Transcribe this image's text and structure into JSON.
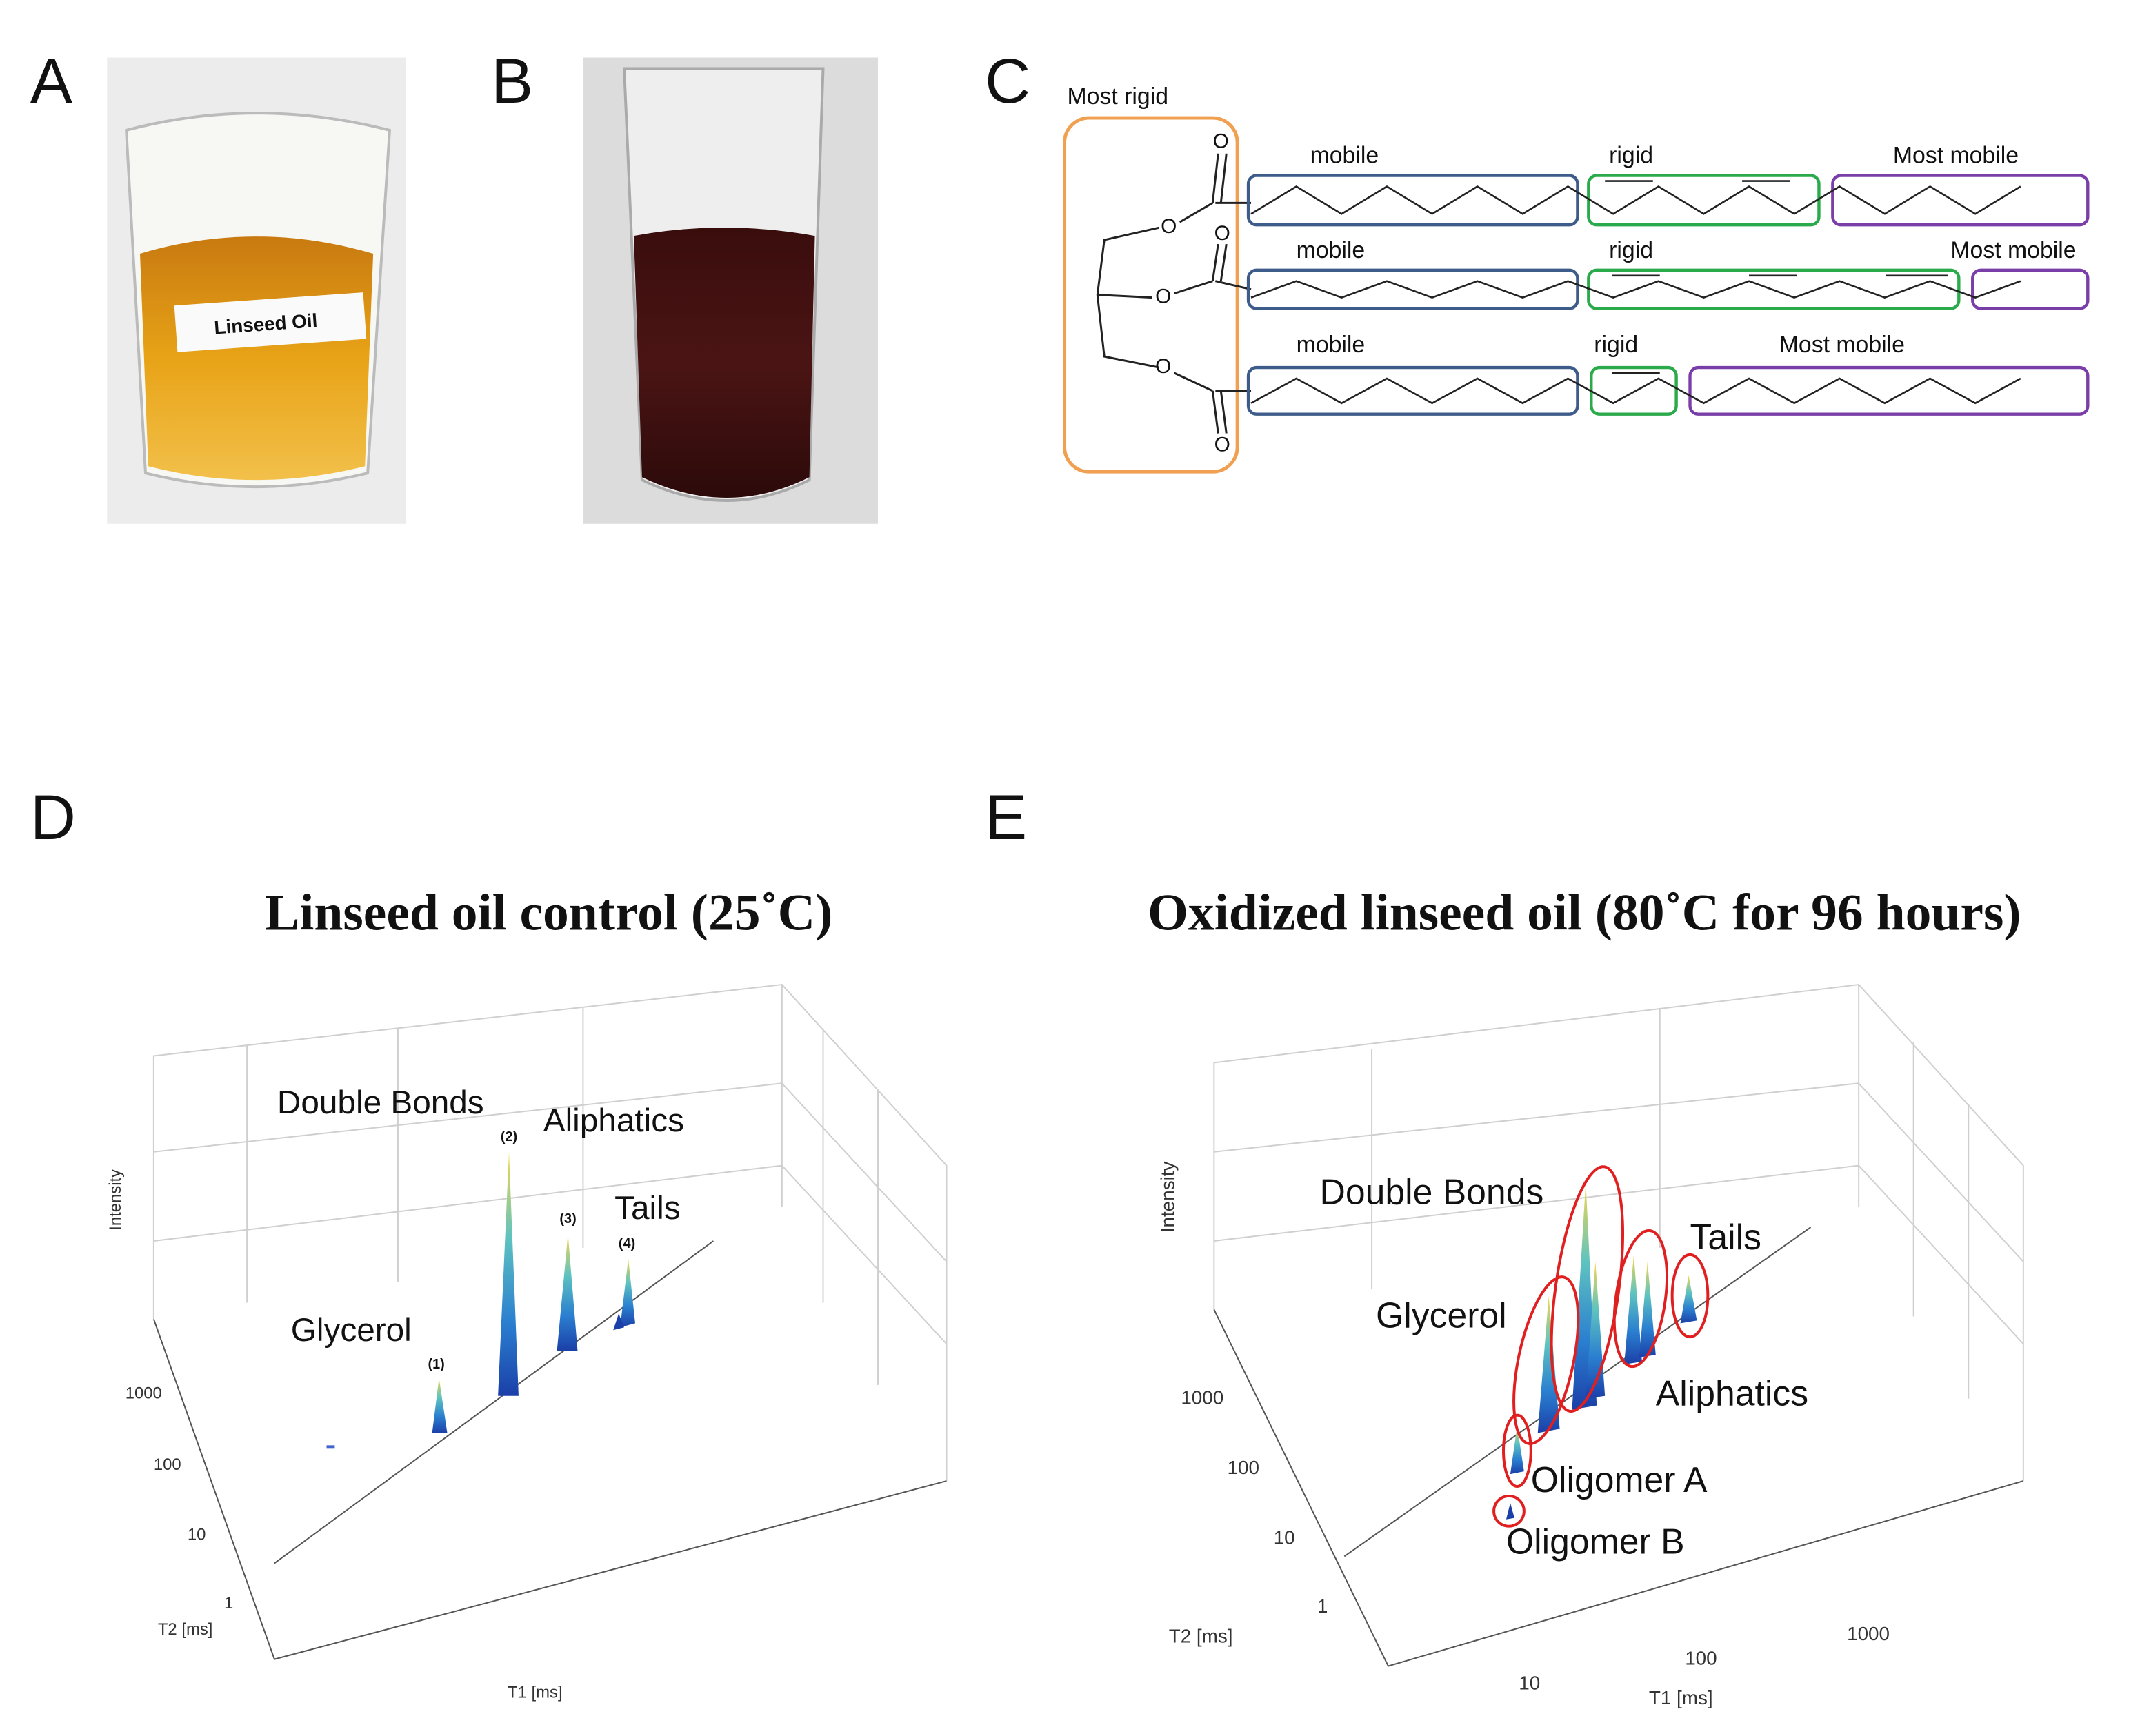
{
  "panels": {
    "A": {
      "label": "A",
      "beaker_label": "Linseed Oil"
    },
    "B": {
      "label": "B"
    },
    "C": {
      "label": "C",
      "glycerol": "Most rigid",
      "atom": "O",
      "chains": [
        {
          "segments": [
            "mobile",
            "rigid",
            "Most mobile"
          ]
        },
        {
          "segments": [
            "mobile",
            "rigid",
            "Most mobile"
          ]
        },
        {
          "segments": [
            "mobile",
            "rigid",
            "Most mobile"
          ]
        }
      ]
    },
    "D": {
      "label": "D",
      "title": "Linseed oil control (25˚C)",
      "z_label": "Intensity",
      "x_label": "T1 [ms]",
      "y_label": "T2 [ms]",
      "y_ticks": [
        "1000",
        "100",
        "10",
        "1"
      ],
      "peaks": [
        {
          "name": "Glycerol",
          "number": "(1)"
        },
        {
          "name": "Double Bonds",
          "number": "(2)"
        },
        {
          "name": "Aliphatics",
          "number": "(3)"
        },
        {
          "name": "Tails",
          "number": "(4)"
        }
      ]
    },
    "E": {
      "label": "E",
      "title": "Oxidized linseed oil (80˚C for 96 hours)",
      "z_label": "Intensity",
      "x_label": "T1 [ms]",
      "y_label": "T2 [ms]",
      "x_ticks": [
        "10",
        "100",
        "1000"
      ],
      "y_ticks": [
        "1000",
        "100",
        "10",
        "1"
      ],
      "peaks": [
        "Double Bonds",
        "Tails",
        "Glycerol",
        "Aliphatics",
        "Oligomer A",
        "Oligomer B"
      ]
    }
  }
}
